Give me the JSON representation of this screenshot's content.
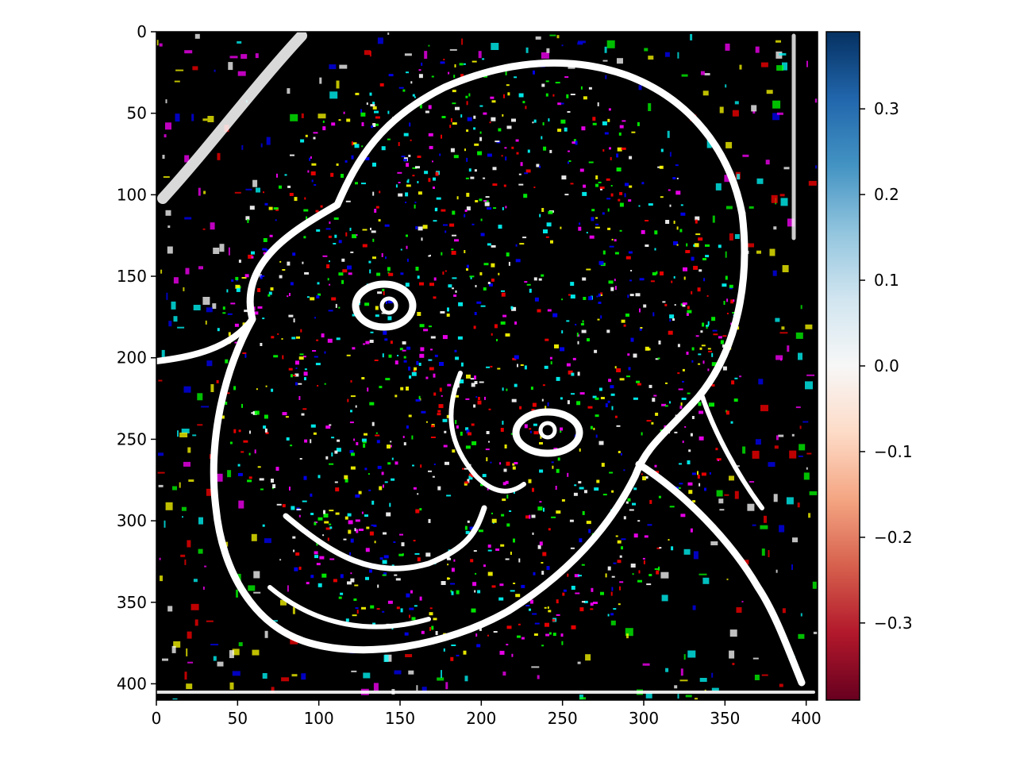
{
  "chart_data": {
    "type": "heatmap",
    "title": "",
    "xlabel": "",
    "ylabel": "",
    "image_description_kind": "edge-filtered saliency image (black background, white edge contours, scattered RGB noise)",
    "x_range": [
      0,
      407
    ],
    "y_range": [
      410,
      0
    ],
    "x_ticks": [
      0,
      50,
      100,
      150,
      200,
      250,
      300,
      350,
      400
    ],
    "y_ticks": [
      0,
      50,
      100,
      150,
      200,
      250,
      300,
      350,
      400
    ],
    "colorbar": {
      "colormap": "RdBu",
      "range": [
        -0.39,
        0.39
      ],
      "ticks": [
        0.3,
        0.2,
        0.1,
        0.0,
        -0.1,
        -0.2,
        -0.3
      ],
      "tick_labels": [
        "0.3",
        "0.2",
        "0.1",
        "0.0",
        "−0.1",
        "−0.2",
        "−0.3"
      ],
      "color_stops": [
        "#67001f",
        "#b2182b",
        "#d6604d",
        "#f4a582",
        "#fddbc7",
        "#f7f7f7",
        "#d1e5f0",
        "#92c5de",
        "#4393c3",
        "#2166ac",
        "#053061"
      ]
    },
    "image_colors": {
      "background": "#000000",
      "edges": "#ffffff",
      "noise": [
        "#ff0000",
        "#00ff00",
        "#0000ff",
        "#ffff00",
        "#ff00ff",
        "#00ffff",
        "#ffffff"
      ]
    }
  }
}
